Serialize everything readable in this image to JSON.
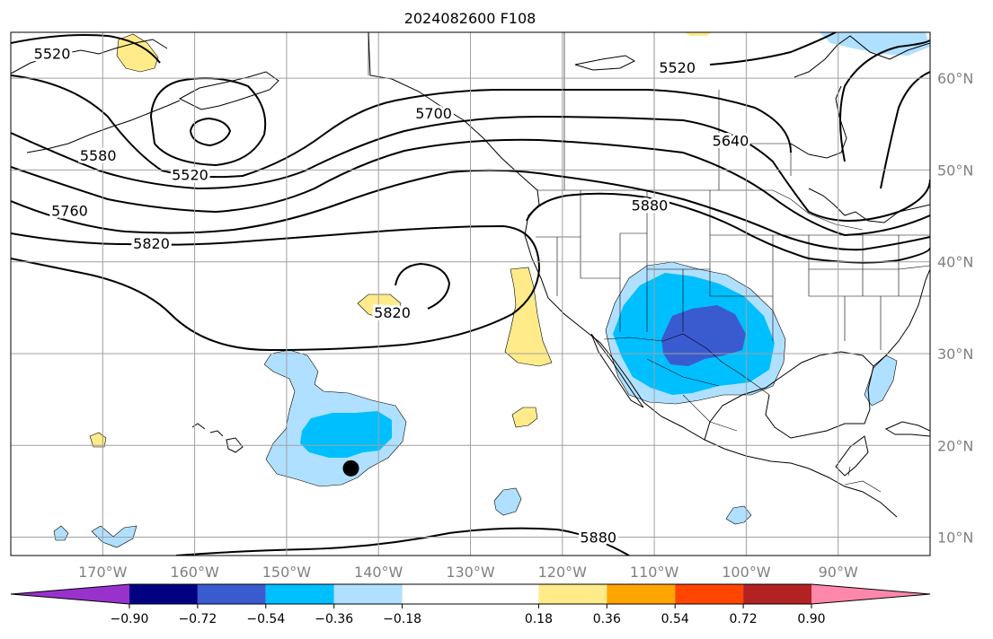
{
  "title": "2024082600 F108",
  "map": {
    "projection": "PlateCarree",
    "lon_range": [
      -180,
      -80
    ],
    "lat_range": [
      8,
      65
    ],
    "gridlines": true,
    "gridline_color": "#a0a0a0",
    "coastline_color": "#000000",
    "lat_labels": [
      "60°N",
      "50°N",
      "40°N",
      "30°N",
      "20°N",
      "10°N"
    ],
    "lat_values": [
      60,
      50,
      40,
      30,
      20,
      10
    ],
    "lon_labels": [
      "170°W",
      "160°W",
      "150°W",
      "140°W",
      "130°W",
      "120°W",
      "110°W",
      "100°W",
      "90°W"
    ],
    "lon_values": [
      -170,
      -160,
      -150,
      -140,
      -130,
      -120,
      -110,
      -100,
      -90
    ],
    "marker": {
      "lon": -143,
      "lat": 17.5,
      "color": "#000000"
    }
  },
  "contours": {
    "color": "#000000",
    "labels": [
      {
        "text": "5520",
        "lon": -175.5,
        "lat": 62.7
      },
      {
        "text": "5520",
        "lon": -107.5,
        "lat": 61.2
      },
      {
        "text": "5580",
        "lon": -170.5,
        "lat": 51.6
      },
      {
        "text": "5520",
        "lon": -160.5,
        "lat": 49.5
      },
      {
        "text": "5700",
        "lon": -134.0,
        "lat": 56.2
      },
      {
        "text": "5640",
        "lon": -101.7,
        "lat": 53.2
      },
      {
        "text": "5760",
        "lon": -173.6,
        "lat": 45.6
      },
      {
        "text": "5820",
        "lon": -164.7,
        "lat": 42.0
      },
      {
        "text": "5880",
        "lon": -110.5,
        "lat": 46.2
      },
      {
        "text": "5820",
        "lon": -138.5,
        "lat": 34.5
      },
      {
        "text": "5880",
        "lon": -116.1,
        "lat": 10.0
      }
    ]
  },
  "colorbar": {
    "colors": [
      "#9932cc",
      "#000080",
      "#3a5bd0",
      "#00bfff",
      "#b0e0ff",
      "#ffffff",
      "#ffeb8a",
      "#ffa500",
      "#ff4500",
      "#b22222",
      "#ff88aa"
    ],
    "ticks": [
      "−0.90",
      "−0.72",
      "−0.54",
      "−0.36",
      "−0.18",
      "0.18",
      "0.36",
      "0.54",
      "0.72",
      "0.90"
    ],
    "tick_values": [
      -0.9,
      -0.72,
      -0.54,
      -0.36,
      -0.18,
      0.18,
      0.36,
      0.54,
      0.72,
      0.9
    ],
    "extend": "both"
  }
}
